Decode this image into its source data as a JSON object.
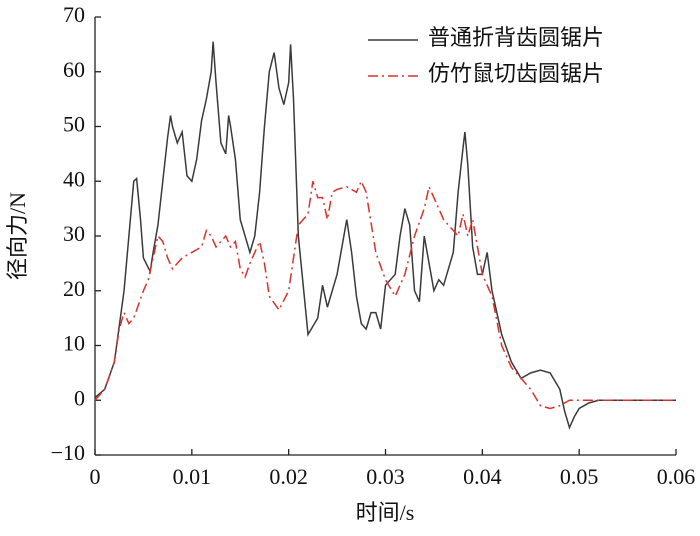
{
  "chart_data": {
    "type": "line",
    "xlabel": "时间/s",
    "ylabel": "径向力/N",
    "xlim": [
      0,
      0.06
    ],
    "xticks": [
      0,
      0.01,
      0.02,
      0.03,
      0.04,
      0.05,
      0.06
    ],
    "ylim": [
      -10,
      70
    ],
    "yticks": [
      {
        "value": -10,
        "label": "−10"
      },
      0,
      10,
      20,
      30,
      40,
      50,
      60,
      70
    ],
    "legend": "upper right",
    "series": [
      {
        "name": "普通折背齿圆锯片",
        "color": "#3a3a3a",
        "style": "solid",
        "x": [
          0,
          0.001,
          0.002,
          0.003,
          0.0035,
          0.004,
          0.0043,
          0.0047,
          0.005,
          0.0057,
          0.006,
          0.0065,
          0.007,
          0.0075,
          0.0078,
          0.008,
          0.0085,
          0.009,
          0.0095,
          0.01,
          0.0105,
          0.011,
          0.0115,
          0.012,
          0.0122,
          0.0125,
          0.013,
          0.0135,
          0.0138,
          0.014,
          0.0145,
          0.015,
          0.016,
          0.0165,
          0.017,
          0.0175,
          0.018,
          0.0185,
          0.019,
          0.0195,
          0.02,
          0.0202,
          0.0205,
          0.021,
          0.022,
          0.023,
          0.0235,
          0.024,
          0.025,
          0.0255,
          0.026,
          0.0265,
          0.027,
          0.0275,
          0.028,
          0.0285,
          0.029,
          0.0295,
          0.03,
          0.031,
          0.0315,
          0.032,
          0.0325,
          0.033,
          0.0335,
          0.034,
          0.0345,
          0.035,
          0.0355,
          0.036,
          0.037,
          0.0375,
          0.038,
          0.0382,
          0.0385,
          0.039,
          0.0395,
          0.04,
          0.0405,
          0.041,
          0.042,
          0.043,
          0.044,
          0.045,
          0.046,
          0.047,
          0.048,
          0.0485,
          0.049,
          0.0495,
          0.05,
          0.051,
          0.052,
          0.06
        ],
        "values": [
          0.5,
          2,
          7,
          20,
          30,
          40,
          40.5,
          33,
          26,
          23.5,
          27,
          32,
          40,
          48,
          52,
          50,
          47,
          49,
          41,
          40,
          44,
          51,
          55,
          60,
          65.5,
          58,
          47,
          45,
          52,
          50,
          44,
          33,
          27,
          30,
          38,
          50,
          60,
          63.5,
          57,
          54,
          58,
          65,
          55,
          30,
          12,
          15,
          21,
          17,
          23,
          28,
          33,
          27,
          19,
          14,
          13,
          16,
          16,
          13,
          21,
          23,
          30,
          35,
          32,
          20,
          18,
          30,
          25,
          20,
          22,
          21,
          27,
          38,
          46,
          49,
          43,
          28,
          23,
          23,
          27,
          20,
          12,
          7,
          4,
          5,
          5.5,
          5,
          2,
          -2,
          -5,
          -3,
          -1.5,
          -0.5,
          0,
          0
        ]
      },
      {
        "name": "仿竹鼠切齿圆锯片",
        "color": "#d9322c",
        "style": "dashdot",
        "x": [
          0,
          0.001,
          0.002,
          0.0025,
          0.003,
          0.0035,
          0.004,
          0.005,
          0.0055,
          0.006,
          0.0065,
          0.007,
          0.0075,
          0.008,
          0.0085,
          0.009,
          0.01,
          0.011,
          0.0115,
          0.012,
          0.0125,
          0.013,
          0.0135,
          0.014,
          0.0145,
          0.015,
          0.0155,
          0.016,
          0.017,
          0.0175,
          0.018,
          0.019,
          0.02,
          0.021,
          0.022,
          0.0225,
          0.023,
          0.0235,
          0.024,
          0.0245,
          0.025,
          0.026,
          0.027,
          0.0275,
          0.028,
          0.029,
          0.03,
          0.031,
          0.032,
          0.033,
          0.034,
          0.0345,
          0.035,
          0.036,
          0.037,
          0.0375,
          0.038,
          0.0385,
          0.039,
          0.04,
          0.041,
          0.042,
          0.043,
          0.044,
          0.045,
          0.046,
          0.047,
          0.048,
          0.049,
          0.05,
          0.06
        ],
        "values": [
          0,
          2,
          7,
          13,
          16,
          14,
          15,
          20,
          22,
          26,
          30,
          29,
          26,
          24,
          25,
          26,
          27,
          28,
          31,
          30,
          28,
          29,
          30,
          28,
          29,
          24,
          22.5,
          25,
          29,
          25,
          19,
          16.5,
          20,
          32,
          34,
          40,
          37,
          37,
          33,
          38,
          38.5,
          39,
          38,
          40,
          38,
          27,
          22,
          19,
          23,
          30,
          35,
          39,
          37,
          33,
          31,
          30,
          34,
          30,
          33,
          23,
          19,
          10,
          6,
          4,
          2,
          -1,
          -1.5,
          -1,
          0,
          0,
          0
        ]
      }
    ]
  }
}
